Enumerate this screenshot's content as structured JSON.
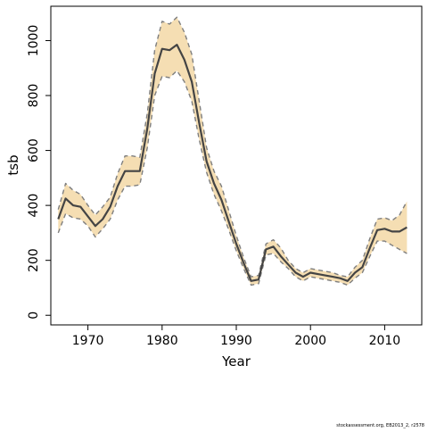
{
  "chart_data": {
    "type": "line",
    "xlabel": "Year",
    "ylabel": "tsb",
    "xlim": [
      1965,
      2015
    ],
    "ylim": [
      -35,
      1125
    ],
    "x_ticks": [
      1970,
      1980,
      1990,
      2000,
      2010
    ],
    "y_ticks": [
      0,
      200,
      400,
      600,
      800,
      1000
    ],
    "grid": false,
    "band_color": "#f5deb3",
    "line_color": "#444444",
    "bound_color": "#7f7f7f",
    "x": [
      1966,
      1967,
      1968,
      1969,
      1970,
      1971,
      1972,
      1973,
      1974,
      1975,
      1976,
      1977,
      1978,
      1979,
      1980,
      1981,
      1982,
      1983,
      1984,
      1985,
      1986,
      1987,
      1988,
      1989,
      1990,
      1991,
      1992,
      1993,
      1994,
      1995,
      1996,
      1997,
      1998,
      1999,
      2000,
      2001,
      2002,
      2003,
      2004,
      2005,
      2006,
      2007,
      2008,
      2009,
      2010,
      2011,
      2012,
      2013
    ],
    "series": [
      {
        "name": "",
        "style": "solid",
        "values": [
          350,
          425,
          400,
          395,
          360,
          325,
          350,
          395,
          470,
          525,
          525,
          525,
          680,
          880,
          970,
          965,
          985,
          930,
          850,
          700,
          560,
          480,
          420,
          340,
          260,
          190,
          125,
          130,
          240,
          250,
          215,
          185,
          155,
          140,
          155,
          150,
          145,
          140,
          135,
          125,
          155,
          175,
          245,
          310,
          315,
          305,
          305,
          320
        ]
      },
      {
        "name": "",
        "style": "dashed",
        "values": [
          385,
          480,
          455,
          440,
          400,
          365,
          395,
          430,
          515,
          580,
          580,
          575,
          735,
          965,
          1070,
          1060,
          1085,
          1030,
          950,
          780,
          610,
          525,
          470,
          380,
          290,
          210,
          140,
          145,
          260,
          275,
          245,
          200,
          170,
          155,
          170,
          165,
          160,
          155,
          145,
          140,
          175,
          200,
          280,
          350,
          355,
          345,
          365,
          415
        ]
      },
      {
        "name": "",
        "style": "dashed",
        "values": [
          300,
          370,
          355,
          350,
          325,
          285,
          315,
          350,
          420,
          470,
          470,
          475,
          610,
          800,
          870,
          865,
          890,
          850,
          780,
          640,
          520,
          440,
          380,
          310,
          235,
          170,
          110,
          115,
          220,
          225,
          195,
          170,
          140,
          125,
          140,
          135,
          130,
          125,
          120,
          110,
          135,
          155,
          215,
          270,
          270,
          255,
          240,
          225
        ]
      }
    ]
  },
  "footnote": "stockassessment.org, EB2013_2, r2578"
}
